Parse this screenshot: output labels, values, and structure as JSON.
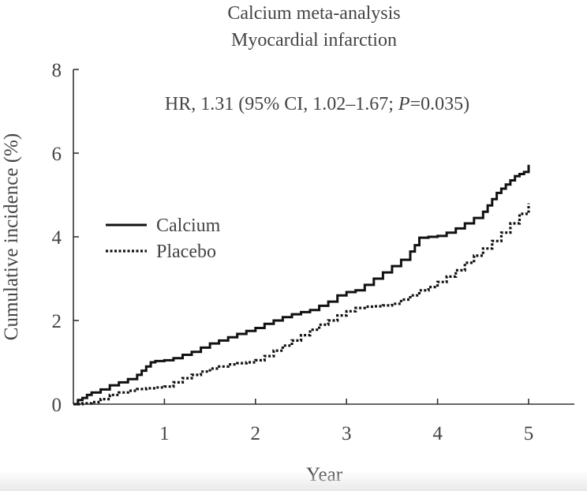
{
  "chart_data": {
    "type": "line",
    "title": "Calcium meta-analysis",
    "subtitle": "Myocardial infarction",
    "annotation": {
      "prefix": "HR, 1.31 (95% CI, 1.02–1.67; ",
      "italic": "P",
      "suffix": "=0.035)"
    },
    "xlabel": "Year",
    "ylabel": "Cumulative incidence (%)",
    "xlim": [
      0,
      5.5
    ],
    "ylim": [
      0,
      8
    ],
    "xticks": [
      1,
      2,
      3,
      4,
      5
    ],
    "yticks": [
      0,
      2,
      4,
      6,
      8
    ],
    "legend_position": "center-left",
    "series": [
      {
        "name": "Calcium",
        "style": "solid",
        "color": "#111111",
        "x": [
          0,
          0.05,
          0.1,
          0.15,
          0.2,
          0.3,
          0.4,
          0.5,
          0.6,
          0.7,
          0.75,
          0.8,
          0.85,
          0.9,
          1.0,
          1.1,
          1.2,
          1.3,
          1.4,
          1.5,
          1.6,
          1.7,
          1.8,
          1.9,
          2.0,
          2.1,
          2.2,
          2.3,
          2.4,
          2.5,
          2.6,
          2.7,
          2.8,
          2.9,
          3.0,
          3.1,
          3.2,
          3.3,
          3.4,
          3.5,
          3.6,
          3.7,
          3.75,
          3.8,
          3.9,
          4.0,
          4.1,
          4.2,
          4.3,
          4.4,
          4.5,
          4.55,
          4.6,
          4.65,
          4.7,
          4.75,
          4.8,
          4.85,
          4.9,
          4.95,
          5.0
        ],
        "y": [
          0,
          0.1,
          0.15,
          0.22,
          0.28,
          0.35,
          0.45,
          0.52,
          0.6,
          0.7,
          0.8,
          0.9,
          1.0,
          1.03,
          1.05,
          1.1,
          1.18,
          1.25,
          1.35,
          1.45,
          1.52,
          1.6,
          1.68,
          1.75,
          1.82,
          1.92,
          2.0,
          2.08,
          2.15,
          2.2,
          2.25,
          2.35,
          2.45,
          2.6,
          2.68,
          2.72,
          2.85,
          3.0,
          3.15,
          3.3,
          3.45,
          3.65,
          3.8,
          3.98,
          4.0,
          4.02,
          4.1,
          4.2,
          4.32,
          4.45,
          4.6,
          4.75,
          4.9,
          5.05,
          5.15,
          5.25,
          5.35,
          5.45,
          5.5,
          5.55,
          5.72
        ]
      },
      {
        "name": "Placebo",
        "style": "dotted",
        "color": "#111111",
        "x": [
          0,
          0.1,
          0.2,
          0.3,
          0.4,
          0.5,
          0.6,
          0.7,
          0.8,
          0.9,
          1.0,
          1.1,
          1.2,
          1.3,
          1.4,
          1.5,
          1.6,
          1.7,
          1.8,
          1.9,
          2.0,
          2.1,
          2.2,
          2.3,
          2.4,
          2.5,
          2.6,
          2.7,
          2.8,
          2.9,
          3.0,
          3.1,
          3.2,
          3.3,
          3.4,
          3.5,
          3.6,
          3.7,
          3.8,
          3.9,
          4.0,
          4.1,
          4.2,
          4.3,
          4.4,
          4.5,
          4.6,
          4.7,
          4.8,
          4.9,
          5.0
        ],
        "y": [
          0,
          0.02,
          0.05,
          0.12,
          0.22,
          0.28,
          0.32,
          0.36,
          0.38,
          0.4,
          0.42,
          0.52,
          0.62,
          0.7,
          0.78,
          0.85,
          0.9,
          0.95,
          0.98,
          1.0,
          1.05,
          1.15,
          1.28,
          1.4,
          1.52,
          1.65,
          1.78,
          1.9,
          2.0,
          2.12,
          2.22,
          2.3,
          2.33,
          2.34,
          2.36,
          2.4,
          2.5,
          2.6,
          2.72,
          2.8,
          2.92,
          3.05,
          3.2,
          3.38,
          3.55,
          3.72,
          3.9,
          4.1,
          4.32,
          4.55,
          4.8
        ]
      }
    ]
  }
}
